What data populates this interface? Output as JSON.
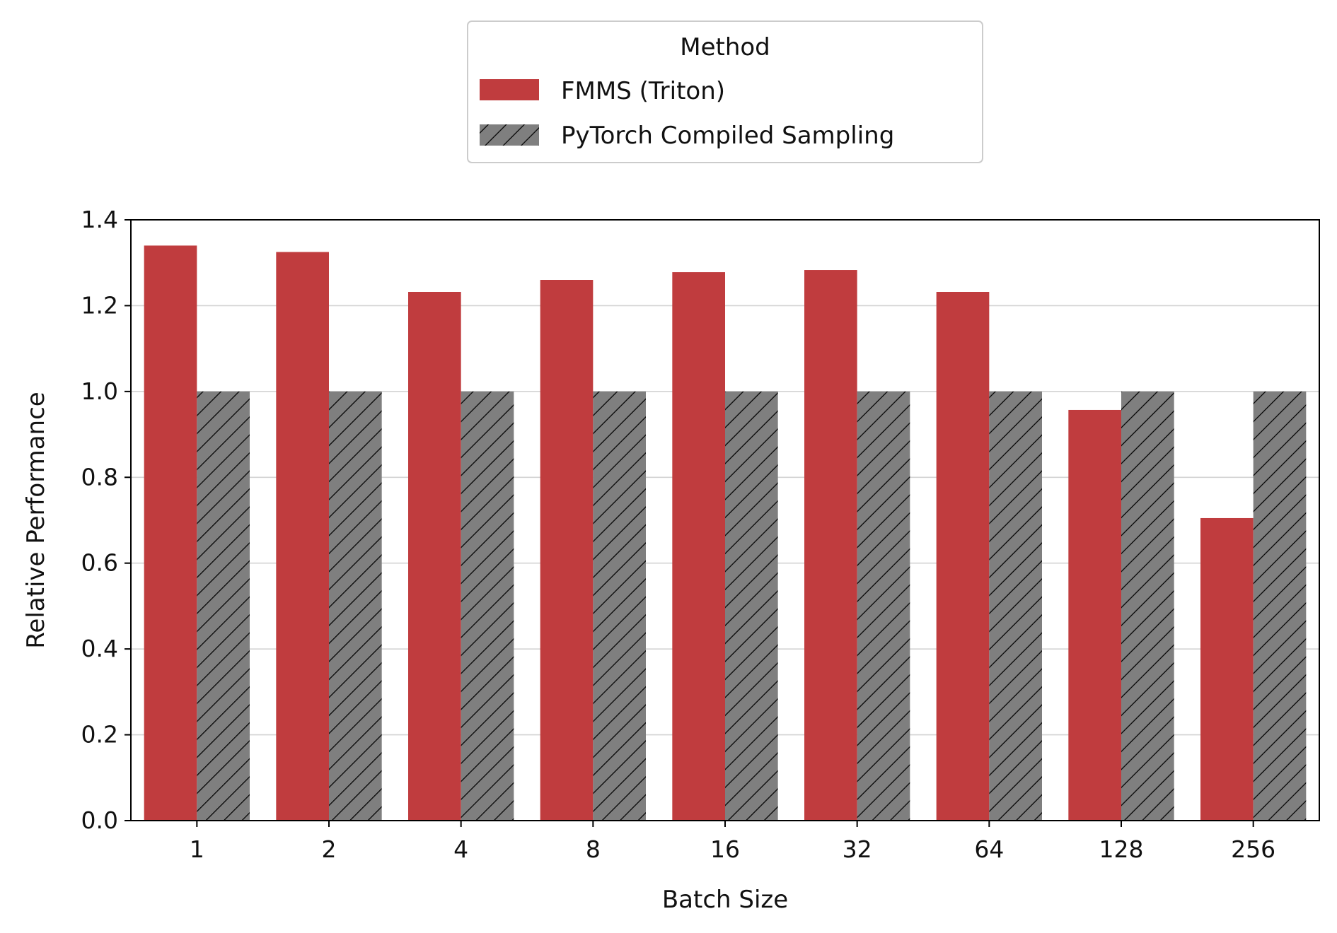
{
  "chart_data": {
    "type": "bar",
    "title": "",
    "xlabel": "Batch Size",
    "ylabel": "Relative Performance",
    "categories": [
      "1",
      "2",
      "4",
      "8",
      "16",
      "32",
      "64",
      "128",
      "256"
    ],
    "series": [
      {
        "name": "FMMS (Triton)",
        "color": "#c03c3e",
        "pattern": "solid",
        "values": [
          1.34,
          1.325,
          1.232,
          1.26,
          1.278,
          1.283,
          1.232,
          0.957,
          0.705
        ]
      },
      {
        "name": "PyTorch Compiled Sampling",
        "color": "#7f7f7f",
        "pattern": "diagonal-hatch",
        "values": [
          1.0,
          1.0,
          1.0,
          1.0,
          1.0,
          1.0,
          1.0,
          1.0,
          1.0
        ]
      }
    ],
    "ylim": [
      0,
      1.4
    ],
    "yticks": [
      "0.0",
      "0.2",
      "0.4",
      "0.6",
      "0.8",
      "1.0",
      "1.2",
      "1.4"
    ],
    "grid": "horizontal",
    "legend": {
      "title": "Method",
      "placement": "above-center"
    }
  }
}
